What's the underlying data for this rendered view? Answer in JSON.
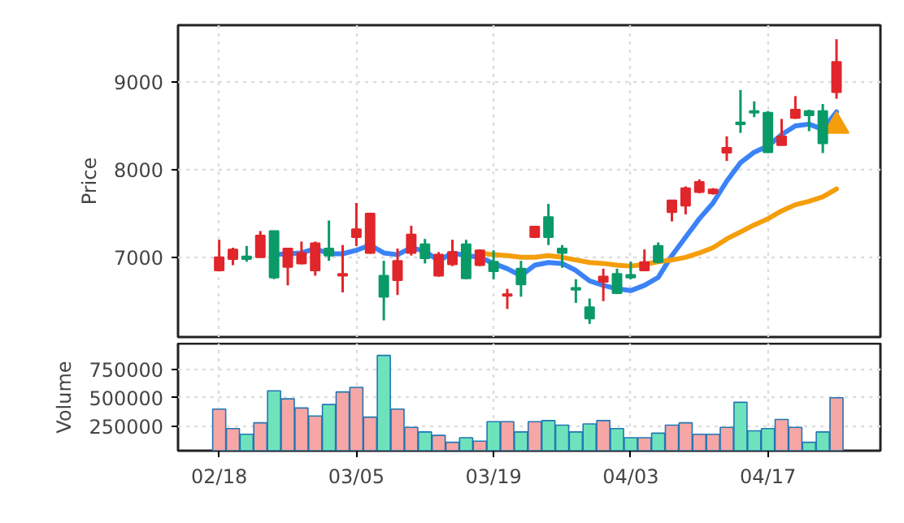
{
  "chart_data": [
    {
      "type": "candlestick",
      "ylabel": "Price",
      "categories": [
        null,
        null,
        null,
        null,
        null,
        null,
        null,
        null,
        null,
        null,
        null,
        null,
        null,
        null,
        null,
        null,
        null,
        null,
        null,
        null,
        null,
        null,
        null,
        null,
        null,
        null,
        null,
        null,
        null,
        null,
        null,
        null,
        null,
        null,
        null,
        null,
        null,
        null,
        null,
        null,
        null,
        null,
        null,
        null,
        null,
        null
      ],
      "ohlc": [
        [
          6850,
          7200,
          6840,
          7000
        ],
        [
          6980,
          7110,
          6910,
          7090
        ],
        [
          7010,
          7130,
          6950,
          6980
        ],
        [
          7000,
          7300,
          7000,
          7250
        ],
        [
          7300,
          7300,
          6750,
          6770
        ],
        [
          6890,
          7100,
          6680,
          7100
        ],
        [
          6930,
          7180,
          6920,
          7050
        ],
        [
          6850,
          7180,
          6790,
          7160
        ],
        [
          7100,
          7420,
          6960,
          7020
        ],
        [
          6790,
          7140,
          6600,
          6810
        ],
        [
          7230,
          7620,
          7130,
          7320
        ],
        [
          7050,
          7510,
          7040,
          7500
        ],
        [
          6790,
          6960,
          6280,
          6550
        ],
        [
          6740,
          7100,
          6570,
          6960
        ],
        [
          7050,
          7360,
          7020,
          7260
        ],
        [
          7150,
          7210,
          6930,
          6990
        ],
        [
          6790,
          7060,
          6780,
          7030
        ],
        [
          6920,
          7200,
          6900,
          7060
        ],
        [
          7150,
          7200,
          6750,
          6760
        ],
        [
          6910,
          7090,
          6900,
          7080
        ],
        [
          6950,
          7080,
          6750,
          6840
        ],
        [
          6560,
          6640,
          6410,
          6580
        ],
        [
          6870,
          6960,
          6550,
          6690
        ],
        [
          7230,
          7360,
          7220,
          7350
        ],
        [
          7460,
          7610,
          7140,
          7230
        ],
        [
          7100,
          7140,
          6880,
          7050
        ],
        [
          6650,
          6750,
          6480,
          6630
        ],
        [
          6430,
          6530,
          6240,
          6300
        ],
        [
          6720,
          6870,
          6500,
          6780
        ],
        [
          6810,
          6870,
          6580,
          6590
        ],
        [
          6800,
          6950,
          6750,
          6770
        ],
        [
          6850,
          7090,
          6840,
          6945
        ],
        [
          7130,
          7170,
          6930,
          6945
        ],
        [
          7515,
          7650,
          7410,
          7650
        ],
        [
          7590,
          7810,
          7490,
          7790
        ],
        [
          7745,
          7890,
          7730,
          7860
        ],
        [
          7730,
          7790,
          7715,
          7775
        ],
        [
          8195,
          8380,
          8100,
          8250
        ],
        [
          8540,
          8910,
          8420,
          8520
        ],
        [
          8670,
          8780,
          8600,
          8650
        ],
        [
          8650,
          8670,
          8190,
          8200
        ],
        [
          8280,
          8580,
          8280,
          8380
        ],
        [
          8590,
          8840,
          8580,
          8685
        ],
        [
          8670,
          8685,
          8440,
          8620
        ],
        [
          8670,
          8750,
          8190,
          8300
        ],
        [
          8885,
          9490,
          8810,
          9230
        ]
      ],
      "colors": [
        "#e0262b",
        "#e0262b",
        "#0a9a68",
        "#e0262b",
        "#0a9a68",
        "#e0262b",
        "#e0262b",
        "#e0262b",
        "#0a9a68",
        "#e0262b",
        "#e0262b",
        "#e0262b",
        "#0a9a68",
        "#e0262b",
        "#e0262b",
        "#0a9a68",
        "#e0262b",
        "#e0262b",
        "#0a9a68",
        "#e0262b",
        "#0a9a68",
        "#e0262b",
        "#0a9a68",
        "#e0262b",
        "#0a9a68",
        "#0a9a68",
        "#0a9a68",
        "#0a9a68",
        "#e0262b",
        "#0a9a68",
        "#0a9a68",
        "#e0262b",
        "#0a9a68",
        "#e0262b",
        "#e0262b",
        "#e0262b",
        "#e0262b",
        "#e0262b",
        "#0a9a68",
        "#0a9a68",
        "#0a9a68",
        "#e0262b",
        "#e0262b",
        "#0a9a68",
        "#0a9a68",
        "#e0262b"
      ],
      "series": [
        {
          "type": "line",
          "color": "#3b82f6",
          "values": [
            null,
            null,
            null,
            null,
            7030,
            7040,
            7050,
            7100,
            7040,
            7040,
            7080,
            7140,
            7050,
            7030,
            7110,
            7070,
            6960,
            7050,
            7020,
            7000,
            6930,
            6870,
            6790,
            6910,
            6940,
            6930,
            6850,
            6730,
            6680,
            6640,
            6620,
            6680,
            6770,
            7020,
            7230,
            7440,
            7620,
            7870,
            8080,
            8200,
            8270,
            8400,
            8500,
            8520,
            8460,
            8660
          ]
        },
        {
          "type": "line",
          "color": "#f59e0b",
          "values": [
            null,
            null,
            null,
            null,
            null,
            null,
            null,
            null,
            null,
            null,
            null,
            null,
            null,
            null,
            null,
            null,
            null,
            null,
            null,
            7050,
            7030,
            7020,
            7000,
            7000,
            7020,
            7000,
            6970,
            6940,
            6930,
            6910,
            6900,
            6920,
            6950,
            6970,
            7000,
            7050,
            7110,
            7210,
            7290,
            7370,
            7440,
            7530,
            7600,
            7640,
            7690,
            7780
          ]
        },
        {
          "type": "scatter",
          "marker": "triangle",
          "color": "#f59e0b",
          "values": [
            null,
            null,
            null,
            null,
            null,
            null,
            null,
            null,
            null,
            null,
            null,
            null,
            null,
            null,
            null,
            null,
            null,
            null,
            null,
            null,
            null,
            null,
            null,
            null,
            null,
            null,
            null,
            null,
            null,
            null,
            null,
            null,
            null,
            null,
            null,
            null,
            null,
            null,
            null,
            null,
            null,
            null,
            null,
            null,
            null,
            8500
          ]
        }
      ],
      "ylim": [
        6090,
        9650
      ],
      "yticks": [
        7000,
        8000,
        9000
      ],
      "grid": true,
      "tick_labels": "y"
    },
    {
      "type": "bar",
      "ylabel": "Volume",
      "categories": [
        "02/18",
        null,
        null,
        null,
        null,
        null,
        null,
        null,
        null,
        null,
        "03/05",
        null,
        null,
        null,
        null,
        null,
        null,
        null,
        null,
        null,
        "03/19",
        null,
        null,
        null,
        null,
        null,
        null,
        null,
        null,
        null,
        "04/03",
        null,
        null,
        null,
        null,
        null,
        null,
        null,
        null,
        null,
        "04/17",
        null,
        null,
        null,
        null,
        null
      ],
      "values": [
        400000,
        230000,
        180000,
        280000,
        560000,
        490000,
        410000,
        340000,
        440000,
        550000,
        590000,
        330000,
        870000,
        400000,
        240000,
        200000,
        170000,
        110000,
        150000,
        120000,
        290000,
        290000,
        200000,
        290000,
        300000,
        260000,
        200000,
        270000,
        300000,
        230000,
        150000,
        150000,
        190000,
        260000,
        280000,
        180000,
        180000,
        240000,
        460000,
        210000,
        230000,
        310000,
        240000,
        110000,
        200000,
        500000
      ],
      "colors": [
        "#f7a6a6",
        "#f7a6a6",
        "#6ee3bb",
        "#f7a6a6",
        "#6ee3bb",
        "#f7a6a6",
        "#f7a6a6",
        "#f7a6a6",
        "#6ee3bb",
        "#f7a6a6",
        "#f7a6a6",
        "#f7a6a6",
        "#6ee3bb",
        "#f7a6a6",
        "#f7a6a6",
        "#6ee3bb",
        "#f7a6a6",
        "#f7a6a6",
        "#6ee3bb",
        "#f7a6a6",
        "#6ee3bb",
        "#f7a6a6",
        "#6ee3bb",
        "#f7a6a6",
        "#6ee3bb",
        "#6ee3bb",
        "#6ee3bb",
        "#6ee3bb",
        "#f7a6a6",
        "#6ee3bb",
        "#6ee3bb",
        "#f7a6a6",
        "#6ee3bb",
        "#f7a6a6",
        "#f7a6a6",
        "#f7a6a6",
        "#f7a6a6",
        "#f7a6a6",
        "#6ee3bb",
        "#6ee3bb",
        "#6ee3bb",
        "#f7a6a6",
        "#f7a6a6",
        "#6ee3bb",
        "#6ee3bb",
        "#f7a6a6"
      ],
      "ylim": [
        36000,
        974000
      ],
      "yticks": [
        250000,
        500000,
        750000
      ],
      "grid": true
    }
  ]
}
